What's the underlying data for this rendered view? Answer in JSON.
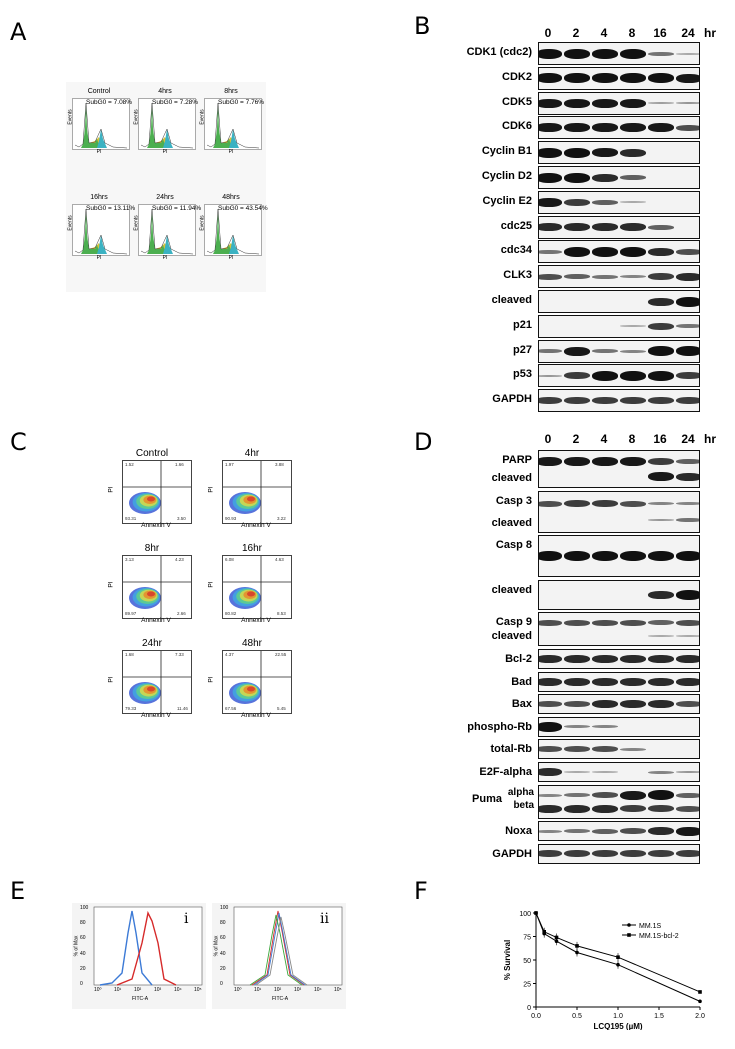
{
  "panels": {
    "A": {
      "letter": "A",
      "hist": [
        {
          "title": "Control",
          "subg0": "SubG0 = 7.08%",
          "xlabel": "PI",
          "ylabel": "Events"
        },
        {
          "title": "4hrs",
          "subg0": "SubG0 = 7.28%",
          "xlabel": "PI",
          "ylabel": "Events"
        },
        {
          "title": "8hrs",
          "subg0": "SubG0 = 7.76%",
          "xlabel": "PI",
          "ylabel": "Events"
        },
        {
          "title": "16hrs",
          "subg0": "SubG0 = 13.11%",
          "xlabel": "PI",
          "ylabel": "Events"
        },
        {
          "title": "24hrs",
          "subg0": "SubG0 = 11.94%",
          "xlabel": "PI",
          "ylabel": "Events"
        },
        {
          "title": "48hrs",
          "subg0": "SubG0 = 43.54%",
          "xlabel": "PI",
          "ylabel": "Events"
        }
      ]
    },
    "B": {
      "letter": "B",
      "lanes": [
        "0",
        "2",
        "4",
        "8",
        "16",
        "24"
      ],
      "unit": "hr",
      "rows": [
        {
          "label": "CDK1 (cdc2)",
          "levels": [
            1,
            1,
            1,
            1,
            0.4,
            0.1
          ]
        },
        {
          "label": "CDK2",
          "levels": [
            1,
            1,
            1,
            1,
            1,
            0.9
          ]
        },
        {
          "label": "CDK5",
          "levels": [
            0.9,
            0.9,
            0.9,
            0.9,
            0.15,
            0.2
          ]
        },
        {
          "label": "CDK6",
          "levels": [
            0.9,
            0.9,
            0.9,
            0.9,
            0.9,
            0.6
          ]
        },
        {
          "label": "Cyclin B1",
          "levels": [
            1,
            1,
            0.9,
            0.8,
            0,
            0
          ]
        },
        {
          "label": "Cyclin D2",
          "levels": [
            1,
            1,
            0.8,
            0.5,
            0,
            0
          ]
        },
        {
          "label": "Cyclin E2",
          "levels": [
            0.9,
            0.7,
            0.5,
            0.1,
            0,
            0
          ]
        },
        {
          "label": "cdc25",
          "levels": [
            0.8,
            0.8,
            0.8,
            0.8,
            0.5,
            0
          ]
        },
        {
          "label": "cdc34",
          "levels": [
            0.4,
            1,
            1,
            1,
            0.8,
            0.6
          ]
        },
        {
          "label": "CLK3",
          "levels": [
            0.6,
            0.5,
            0.4,
            0.3,
            0.7,
            0.8
          ]
        },
        {
          "label": "cleaved",
          "levels": [
            0,
            0,
            0,
            0,
            0.8,
            1
          ]
        },
        {
          "label": "p21",
          "levels": [
            0,
            0,
            0,
            0.1,
            0.7,
            0.4
          ]
        },
        {
          "label": "p27",
          "levels": [
            0.4,
            0.9,
            0.4,
            0.3,
            1,
            1
          ]
        },
        {
          "label": "p53",
          "levels": [
            0.2,
            0.7,
            1,
            1,
            1,
            0.7
          ]
        },
        {
          "label": "GAPDH",
          "levels": [
            0.7,
            0.7,
            0.7,
            0.7,
            0.7,
            0.7
          ]
        }
      ]
    },
    "C": {
      "letter": "C",
      "facs": [
        {
          "title": "Control",
          "xlabel": "Annexin V",
          "ylabel": "PI",
          "q": [
            "1.52",
            "1.66",
            "93.31",
            "3.50"
          ]
        },
        {
          "title": "4hr",
          "xlabel": "Annexin V",
          "ylabel": "PI",
          "q": [
            "1.97",
            "3.88",
            "90.93",
            "3.22"
          ]
        },
        {
          "title": "8hr",
          "xlabel": "Annexin V",
          "ylabel": "PI",
          "q": [
            "3.13",
            "4.23",
            "89.97",
            "2.66"
          ]
        },
        {
          "title": "16hr",
          "xlabel": "Annexin V",
          "ylabel": "PI",
          "q": [
            "6.08",
            "4.63",
            "80.82",
            "8.53"
          ]
        },
        {
          "title": "24hr",
          "xlabel": "Annexin V",
          "ylabel": "PI",
          "q": [
            "1.68",
            "7.33",
            "79.33",
            "11.46"
          ]
        },
        {
          "title": "48hr",
          "xlabel": "Annexin V",
          "ylabel": "PI",
          "q": [
            "4.37",
            "22.55",
            "67.56",
            "5.45"
          ]
        }
      ]
    },
    "D": {
      "letter": "D",
      "lanes": [
        "0",
        "2",
        "4",
        "8",
        "16",
        "24"
      ],
      "unit": "hr",
      "rows": [
        {
          "label": "PARP",
          "label2": "cleaved",
          "h": 36,
          "levels": [
            0.9,
            0.9,
            0.9,
            0.9,
            0.7,
            0.5
          ],
          "levels2": [
            0,
            0,
            0,
            0,
            0.9,
            0.8
          ]
        },
        {
          "label": "Casp 3",
          "label2": "cleaved",
          "h": 40,
          "levels": [
            0.6,
            0.7,
            0.7,
            0.6,
            0.3,
            0.3
          ],
          "levels2": [
            0,
            0,
            0,
            0,
            0.2,
            0.4
          ]
        },
        {
          "label": "Casp 8",
          "h": 40,
          "levels": [
            1,
            1,
            1,
            1,
            1,
            1
          ]
        },
        {
          "label": "cleaved",
          "h": 28,
          "levels": [
            0,
            0,
            0,
            0,
            0.8,
            1
          ]
        },
        {
          "label": "Casp 9",
          "label2": "cleaved",
          "h": 32,
          "levels": [
            0.6,
            0.6,
            0.6,
            0.6,
            0.5,
            0.6
          ],
          "levels2": [
            0,
            0,
            0,
            0,
            0.1,
            0.1
          ]
        },
        {
          "label": "Bcl-2",
          "h": 18,
          "levels": [
            0.8,
            0.8,
            0.8,
            0.8,
            0.8,
            0.8
          ]
        },
        {
          "label": "Bad",
          "h": 18,
          "levels": [
            0.8,
            0.8,
            0.8,
            0.8,
            0.8,
            0.8
          ]
        },
        {
          "label": "Bax",
          "h": 18,
          "levels": [
            0.6,
            0.6,
            0.8,
            0.8,
            0.8,
            0.6
          ]
        },
        {
          "label": "phospho-Rb",
          "h": 18,
          "levels": [
            1,
            0.3,
            0.3,
            0,
            0,
            0
          ]
        },
        {
          "label": "total-Rb",
          "h": 18,
          "levels": [
            0.6,
            0.6,
            0.6,
            0.3,
            0,
            0
          ]
        },
        {
          "label": "E2F-alpha",
          "h": 18,
          "levels": [
            0.8,
            0.1,
            0.1,
            0,
            0.3,
            0.2
          ]
        },
        {
          "label": "Puma",
          "sub": [
            "alpha",
            "beta"
          ],
          "h": 32,
          "levels": [
            0.3,
            0.4,
            0.6,
            0.9,
            1,
            0.5
          ],
          "levels2": [
            0.8,
            0.8,
            0.8,
            0.7,
            0.7,
            0.6
          ]
        },
        {
          "label": "Noxa",
          "h": 18,
          "levels": [
            0.3,
            0.4,
            0.5,
            0.6,
            0.8,
            0.9
          ]
        },
        {
          "label": "GAPDH",
          "h": 18,
          "levels": [
            0.7,
            0.7,
            0.7,
            0.7,
            0.7,
            0.7
          ]
        }
      ]
    },
    "E": {
      "letter": "E",
      "sub": [
        "i",
        "ii"
      ],
      "xlabel": "FITC-A",
      "ylabel": "% of Max",
      "yticks": [
        "0",
        "20",
        "40",
        "60",
        "80",
        "100"
      ],
      "xticks": [
        "10⁰",
        "10¹",
        "10²",
        "10³",
        "10⁴",
        "10⁵"
      ]
    },
    "F": {
      "letter": "F"
    }
  },
  "chart_data": {
    "type": "line",
    "title": "",
    "xlabel": "LCQ195 (µM)",
    "ylabel": "% Survival",
    "xlim": [
      0,
      2
    ],
    "ylim": [
      0,
      100
    ],
    "xticks": [
      "0.0",
      "0.5",
      "1.0",
      "1.5",
      "2.0"
    ],
    "yticks": [
      "0",
      "25",
      "50",
      "75",
      "100"
    ],
    "legend": "top-right",
    "series": [
      {
        "name": "MM.1S",
        "x": [
          0,
          0.1,
          0.25,
          0.5,
          1.0,
          2.0
        ],
        "y": [
          100,
          78,
          70,
          58,
          45,
          6
        ]
      },
      {
        "name": "MM.1S-bcl-2",
        "x": [
          0,
          0.1,
          0.25,
          0.5,
          1.0,
          2.0
        ],
        "y": [
          100,
          80,
          74,
          65,
          53,
          16
        ]
      }
    ]
  }
}
